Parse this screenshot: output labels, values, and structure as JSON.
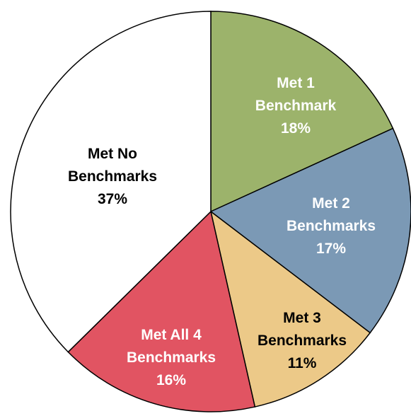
{
  "chart_data": {
    "type": "pie",
    "start_angle_deg": 0,
    "direction": "clockwise",
    "slices": [
      {
        "label_lines": [
          "Met 1",
          "Benchmark",
          "18%"
        ],
        "value": 18,
        "color": "#9cb36b",
        "text_color": "#ffffff"
      },
      {
        "label_lines": [
          "Met 2",
          "Benchmarks",
          "17%"
        ],
        "value": 17,
        "color": "#7b99b5",
        "text_color": "#ffffff"
      },
      {
        "label_lines": [
          "Met 3",
          "Benchmarks",
          "11%"
        ],
        "value": 11,
        "color": "#ecc988",
        "text_color": "#000000"
      },
      {
        "label_lines": [
          "Met All 4",
          "Benchmarks",
          "16%"
        ],
        "value": 16,
        "color": "#e15462",
        "text_color": "#ffffff"
      },
      {
        "label_lines": [
          "Met No",
          "Benchmarks",
          "37%"
        ],
        "value": 37,
        "color": "#ffffff",
        "text_color": "#000000"
      }
    ]
  }
}
